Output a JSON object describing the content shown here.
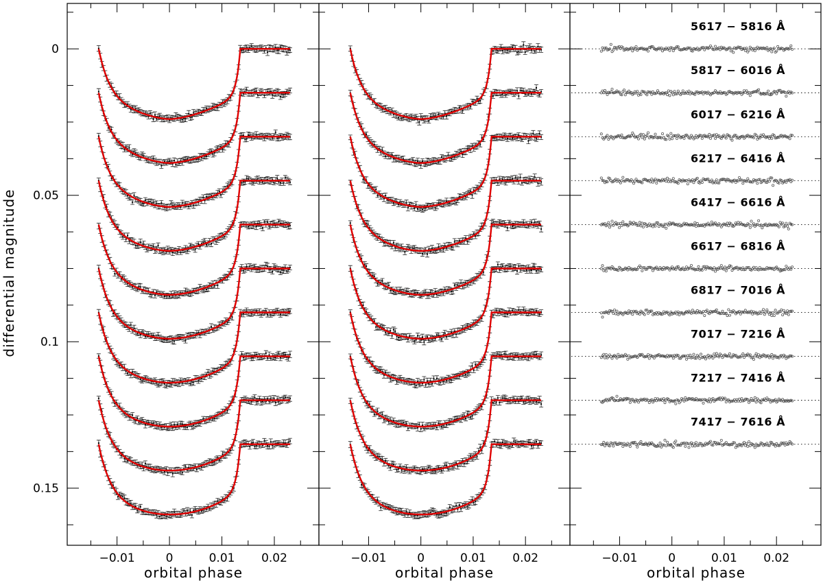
{
  "chart_data": [
    {
      "type": "scatter",
      "panel": "light curves",
      "xlabel": "orbital phase",
      "ylabel": "differential magnitude",
      "xlim": [
        -0.0195,
        0.0285
      ],
      "ylim": [
        0.1695,
        -0.0155
      ],
      "y_inverted": true,
      "xticks": [
        -0.01,
        0,
        0.01,
        0.02
      ],
      "xtick_labels": [
        "−0.01",
        "0",
        "0.01",
        "0.02"
      ],
      "yticks": [
        0,
        0.05,
        0.1,
        0.15
      ],
      "ytick_labels": [
        "0",
        "0.05",
        "0.1",
        "0.15"
      ],
      "grid": false,
      "legend": "none",
      "colors": {
        "points": "#000000",
        "model": "#e00000"
      },
      "phase_range": [
        -0.0135,
        0.023
      ],
      "n_points_per_curve": 120,
      "eclipse": {
        "ingress_start_phase": -0.0135,
        "egress_end_phase": 0.0135,
        "transit_depth": 0.024
      },
      "series_offsets": [
        0,
        0.015,
        0.03,
        0.045,
        0.06,
        0.075,
        0.09,
        0.105,
        0.12,
        0.135
      ]
    },
    {
      "type": "scatter",
      "panel": "light curves detrended",
      "xlabel": "orbital phase",
      "xlim": [
        -0.0195,
        0.0285
      ],
      "ylim": [
        0.1695,
        -0.0155
      ],
      "y_inverted": true,
      "xticks": [
        -0.01,
        0,
        0.01,
        0.02
      ],
      "xtick_labels": [
        "−0.01",
        "0",
        "0.01",
        "0.02"
      ],
      "grid": false,
      "legend": "none",
      "colors": {
        "points": "#000000",
        "model": "#e00000"
      },
      "phase_range": [
        -0.0135,
        0.023
      ],
      "n_points_per_curve": 120,
      "eclipse": {
        "ingress_start_phase": -0.0135,
        "egress_end_phase": 0.0135,
        "transit_depth": 0.024
      },
      "series_offsets": [
        0,
        0.015,
        0.03,
        0.045,
        0.06,
        0.075,
        0.09,
        0.105,
        0.12,
        0.135
      ]
    },
    {
      "type": "scatter",
      "panel": "residuals",
      "xlabel": "orbital phase",
      "xlim": [
        -0.0195,
        0.0285
      ],
      "ylim": [
        0.1695,
        -0.0155
      ],
      "y_inverted": true,
      "xticks": [
        -0.01,
        0,
        0.01,
        0.02
      ],
      "xtick_labels": [
        "−0.01",
        "0",
        "0.01",
        "0.02"
      ],
      "grid": false,
      "legend": "none",
      "colors": {
        "points": "#555555",
        "zero_line": "#000000"
      },
      "phase_range": [
        -0.0135,
        0.023
      ],
      "n_points_per_curve": 160,
      "series_offsets": [
        0,
        0.015,
        0.03,
        0.045,
        0.06,
        0.075,
        0.09,
        0.105,
        0.12,
        0.135
      ],
      "series": [
        {
          "name": "5617 − 5816 Å",
          "offset": 0
        },
        {
          "name": "5817 − 6016 Å",
          "offset": 0.015
        },
        {
          "name": "6017 − 6216 Å",
          "offset": 0.03
        },
        {
          "name": "6217 − 6416 Å",
          "offset": 0.045
        },
        {
          "name": "6417 − 6616 Å",
          "offset": 0.06
        },
        {
          "name": "6617 − 6816 Å",
          "offset": 0.075
        },
        {
          "name": "6817 − 7016 Å",
          "offset": 0.09
        },
        {
          "name": "7017 − 7216 Å",
          "offset": 0.105
        },
        {
          "name": "7217 − 7416 Å",
          "offset": 0.12
        },
        {
          "name": "7417 − 7616 Å",
          "offset": 0.135
        }
      ]
    }
  ]
}
